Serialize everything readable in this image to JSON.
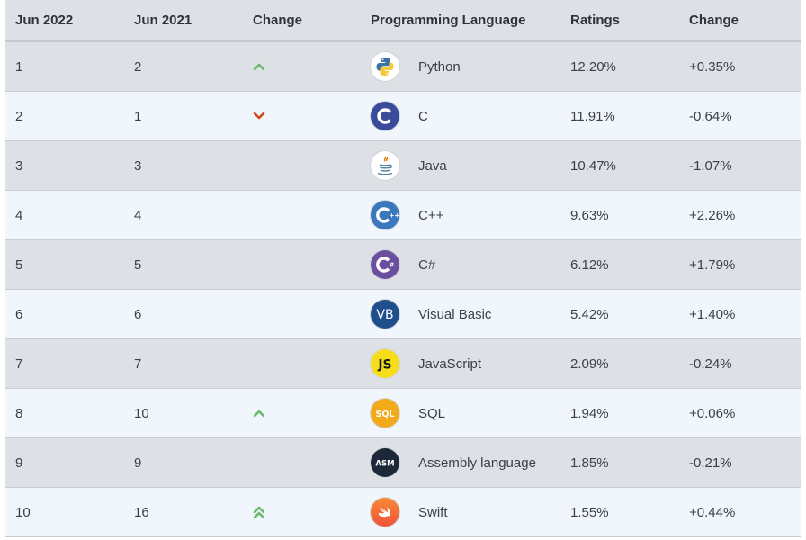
{
  "headers": [
    "Jun 2022",
    "Jun 2021",
    "Change",
    "Programming Language",
    "Ratings",
    "Change"
  ],
  "rows": [
    {
      "rank_2022": "1",
      "rank_2021": "2",
      "trend": "up",
      "logo": "python-logo",
      "language": "Python",
      "ratings": "12.20%",
      "change": "+0.35%"
    },
    {
      "rank_2022": "2",
      "rank_2021": "1",
      "trend": "down",
      "logo": "c-logo",
      "language": "C",
      "ratings": "11.91%",
      "change": "-0.64%"
    },
    {
      "rank_2022": "3",
      "rank_2021": "3",
      "trend": "none",
      "logo": "java-logo",
      "language": "Java",
      "ratings": "10.47%",
      "change": "-1.07%"
    },
    {
      "rank_2022": "4",
      "rank_2021": "4",
      "trend": "none",
      "logo": "cpp-logo",
      "language": "C++",
      "ratings": "9.63%",
      "change": "+2.26%"
    },
    {
      "rank_2022": "5",
      "rank_2021": "5",
      "trend": "none",
      "logo": "csharp-logo",
      "language": "C#",
      "ratings": "6.12%",
      "change": "+1.79%"
    },
    {
      "rank_2022": "6",
      "rank_2021": "6",
      "trend": "none",
      "logo": "vb-logo",
      "language": "Visual Basic",
      "ratings": "5.42%",
      "change": "+1.40%"
    },
    {
      "rank_2022": "7",
      "rank_2021": "7",
      "trend": "none",
      "logo": "js-logo",
      "language": "JavaScript",
      "ratings": "2.09%",
      "change": "-0.24%"
    },
    {
      "rank_2022": "8",
      "rank_2021": "10",
      "trend": "up",
      "logo": "sql-logo",
      "language": "SQL",
      "ratings": "1.94%",
      "change": "+0.06%"
    },
    {
      "rank_2022": "9",
      "rank_2021": "9",
      "trend": "none",
      "logo": "asm-logo",
      "language": "Assembly language",
      "ratings": "1.85%",
      "change": "-0.21%"
    },
    {
      "rank_2022": "10",
      "rank_2021": "16",
      "trend": "double-up",
      "logo": "swift-logo",
      "language": "Swift",
      "ratings": "1.55%",
      "change": "+0.44%"
    }
  ],
  "logo_text": {
    "vb": "VB",
    "js": "JS",
    "sql": "SQL",
    "asm": "ASM"
  },
  "colors": {
    "up": "#6cb86a",
    "down": "#d24a1c",
    "header_bg": "#dde1e6",
    "row_alt_bg": "#f1f6fc"
  }
}
